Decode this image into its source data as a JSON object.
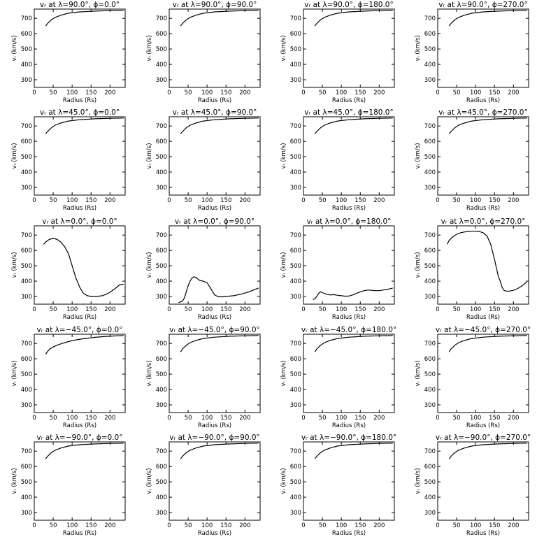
{
  "chart_data": {
    "type": "line",
    "layout": {
      "rows": 5,
      "cols": 4
    },
    "xlabel": "Radius (Rs)",
    "ylabel": "vᵣ (km/s)",
    "xlim": [
      0,
      240
    ],
    "ylim": [
      250,
      760
    ],
    "xticks": [
      0,
      50,
      100,
      150,
      200
    ],
    "yticks": [
      300,
      400,
      500,
      600,
      700
    ],
    "panels": [
      {
        "title": "vᵣ at λ=90.0°, ϕ=0.0°",
        "x": [
          30,
          35,
          45,
          55,
          70,
          90,
          120,
          160,
          200,
          236
        ],
        "y": [
          650,
          666,
          690,
          706,
          720,
          733,
          742,
          747,
          750,
          752
        ]
      },
      {
        "title": "vᵣ at λ=90.0°, ϕ=90.0°",
        "x": [
          30,
          35,
          45,
          55,
          70,
          90,
          120,
          160,
          200,
          236
        ],
        "y": [
          650,
          666,
          690,
          706,
          720,
          733,
          742,
          747,
          750,
          752
        ]
      },
      {
        "title": "vᵣ at λ=90.0°, ϕ=180.0°",
        "x": [
          30,
          35,
          45,
          55,
          70,
          90,
          120,
          160,
          200,
          236
        ],
        "y": [
          650,
          666,
          690,
          706,
          720,
          733,
          742,
          747,
          750,
          752
        ]
      },
      {
        "title": "vᵣ at λ=90.0°, ϕ=270.0°",
        "x": [
          30,
          35,
          45,
          55,
          70,
          90,
          120,
          160,
          200,
          236
        ],
        "y": [
          650,
          666,
          690,
          706,
          720,
          733,
          742,
          747,
          750,
          752
        ]
      },
      {
        "title": "vᵣ at λ=45.0°, ϕ=0.0°",
        "x": [
          30,
          35,
          45,
          55,
          70,
          90,
          120,
          160,
          200,
          236
        ],
        "y": [
          650,
          664,
          688,
          705,
          719,
          732,
          741,
          747,
          750,
          752
        ]
      },
      {
        "title": "vᵣ at λ=45.0°, ϕ=90.0°",
        "x": [
          30,
          35,
          45,
          55,
          70,
          90,
          120,
          160,
          200,
          236
        ],
        "y": [
          650,
          664,
          688,
          705,
          719,
          732,
          741,
          747,
          750,
          752
        ]
      },
      {
        "title": "vᵣ at λ=45.0°, ϕ=180.0°",
        "x": [
          30,
          35,
          45,
          55,
          70,
          90,
          120,
          160,
          200,
          236
        ],
        "y": [
          650,
          664,
          688,
          705,
          719,
          732,
          741,
          747,
          750,
          752
        ]
      },
      {
        "title": "vᵣ at λ=45.0°, ϕ=270.0°",
        "x": [
          30,
          35,
          45,
          55,
          70,
          90,
          120,
          160,
          200,
          236
        ],
        "y": [
          650,
          664,
          688,
          705,
          719,
          732,
          741,
          747,
          750,
          752
        ]
      },
      {
        "title": "vᵣ at λ=0.0°, ϕ=0.0°",
        "x": [
          25,
          30,
          40,
          50,
          60,
          70,
          80,
          90,
          100,
          110,
          120,
          130,
          140,
          150,
          165,
          180,
          195,
          210,
          225,
          236
        ],
        "y": [
          640,
          655,
          672,
          678,
          672,
          655,
          625,
          580,
          500,
          420,
          360,
          320,
          305,
          300,
          300,
          305,
          320,
          345,
          375,
          380
        ]
      },
      {
        "title": "vᵣ at λ=0.0°, ϕ=90.0°",
        "x": [
          25,
          30,
          35,
          40,
          45,
          50,
          55,
          60,
          65,
          70,
          75,
          80,
          90,
          100,
          110,
          120,
          130,
          140,
          150,
          170,
          190,
          210,
          236
        ],
        "y": [
          260,
          265,
          270,
          290,
          330,
          370,
          400,
          420,
          428,
          425,
          415,
          405,
          400,
          390,
          350,
          310,
          298,
          298,
          300,
          305,
          315,
          330,
          355
        ]
      },
      {
        "title": "vᵣ at λ=0.0°, ϕ=180.0°",
        "x": [
          25,
          30,
          35,
          40,
          45,
          50,
          60,
          70,
          80,
          90,
          100,
          110,
          120,
          130,
          140,
          150,
          160,
          170,
          180,
          190,
          200,
          210,
          220,
          236
        ],
        "y": [
          280,
          285,
          300,
          320,
          330,
          325,
          315,
          310,
          312,
          308,
          305,
          302,
          303,
          310,
          320,
          330,
          338,
          342,
          340,
          338,
          338,
          342,
          345,
          355
        ]
      },
      {
        "title": "vᵣ at λ=0.0°, ϕ=270.0°",
        "x": [
          25,
          30,
          40,
          50,
          60,
          70,
          80,
          90,
          100,
          110,
          120,
          130,
          140,
          150,
          160,
          165,
          170,
          175,
          180,
          190,
          200,
          210,
          220,
          236
        ],
        "y": [
          640,
          665,
          690,
          705,
          715,
          720,
          723,
          725,
          725,
          723,
          715,
          695,
          640,
          540,
          430,
          400,
          360,
          340,
          335,
          335,
          340,
          350,
          365,
          395
        ]
      },
      {
        "title": "vᵣ at λ=−45.0°, ϕ=0.0°",
        "x": [
          30,
          35,
          40,
          50,
          60,
          70,
          90,
          110,
          130,
          160,
          190,
          220,
          236
        ],
        "y": [
          630,
          648,
          662,
          677,
          688,
          697,
          712,
          723,
          731,
          740,
          746,
          750,
          752
        ]
      },
      {
        "title": "vᵣ at λ=−45.0°, ϕ=90.0°",
        "x": [
          30,
          35,
          45,
          55,
          70,
          90,
          120,
          160,
          200,
          236
        ],
        "y": [
          645,
          664,
          688,
          705,
          719,
          732,
          741,
          747,
          750,
          752
        ]
      },
      {
        "title": "vᵣ at λ=−45.0°, ϕ=180.0°",
        "x": [
          30,
          35,
          45,
          55,
          70,
          90,
          120,
          160,
          200,
          236
        ],
        "y": [
          645,
          664,
          688,
          705,
          719,
          732,
          741,
          747,
          750,
          752
        ]
      },
      {
        "title": "vᵣ at λ=−45.0°, ϕ=270.0°",
        "x": [
          30,
          35,
          45,
          55,
          70,
          90,
          120,
          160,
          200,
          236
        ],
        "y": [
          645,
          664,
          688,
          705,
          719,
          732,
          741,
          747,
          750,
          752
        ]
      },
      {
        "title": "vᵣ at λ=−90.0°, ϕ=0.0°",
        "x": [
          30,
          35,
          45,
          55,
          70,
          90,
          120,
          160,
          200,
          236
        ],
        "y": [
          650,
          666,
          690,
          706,
          720,
          733,
          742,
          747,
          750,
          752
        ]
      },
      {
        "title": "vᵣ at λ=−90.0°, ϕ=90.0°",
        "x": [
          30,
          35,
          45,
          55,
          70,
          90,
          120,
          160,
          200,
          236
        ],
        "y": [
          650,
          666,
          690,
          706,
          720,
          733,
          742,
          747,
          750,
          752
        ]
      },
      {
        "title": "vᵣ at λ=−90.0°, ϕ=180.0°",
        "x": [
          30,
          35,
          45,
          55,
          70,
          90,
          120,
          160,
          200,
          236
        ],
        "y": [
          650,
          666,
          690,
          706,
          720,
          733,
          742,
          747,
          750,
          752
        ]
      },
      {
        "title": "vᵣ at λ=−90.0°, ϕ=270.0°",
        "x": [
          30,
          35,
          45,
          55,
          70,
          90,
          120,
          160,
          200,
          236
        ],
        "y": [
          650,
          666,
          690,
          706,
          720,
          733,
          742,
          747,
          750,
          752
        ]
      }
    ]
  }
}
